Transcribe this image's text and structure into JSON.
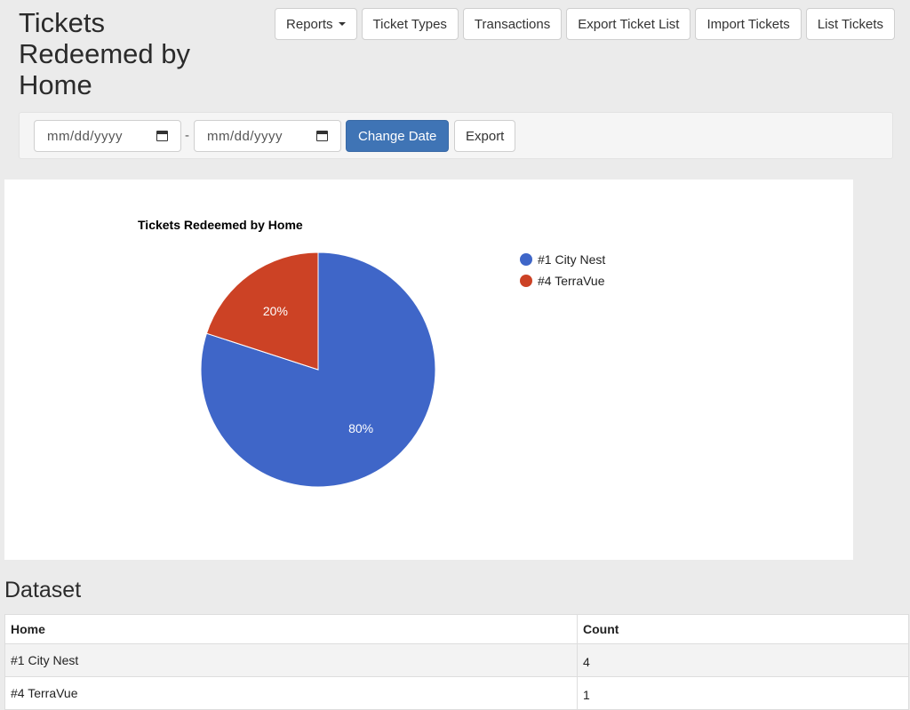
{
  "page": {
    "title": "Tickets Redeemed by Home"
  },
  "toolbar": {
    "reports_label": "Reports",
    "ticket_types_label": "Ticket Types",
    "transactions_label": "Transactions",
    "export_ticket_list_label": "Export Ticket List",
    "import_tickets_label": "Import Tickets",
    "list_tickets_label": "List Tickets"
  },
  "filters": {
    "start_date_placeholder": "mm/dd/yyyy",
    "end_date_placeholder": "mm/dd/yyyy",
    "separator": "-",
    "change_date_label": "Change Date",
    "export_label": "Export"
  },
  "chart_data": {
    "type": "pie",
    "title": "Tickets Redeemed by Home",
    "categories": [
      "#1 City Nest",
      "#4 TerraVue"
    ],
    "values": [
      4,
      1
    ],
    "labels": [
      "80%",
      "20%"
    ],
    "colors": [
      "#3f66c8",
      "#cc4225"
    ],
    "legend_position": "right"
  },
  "dataset": {
    "title": "Dataset",
    "columns": [
      "Home",
      "Count"
    ],
    "rows": [
      [
        "#1 City Nest",
        "4"
      ],
      [
        "#4 TerraVue",
        "1"
      ]
    ]
  }
}
